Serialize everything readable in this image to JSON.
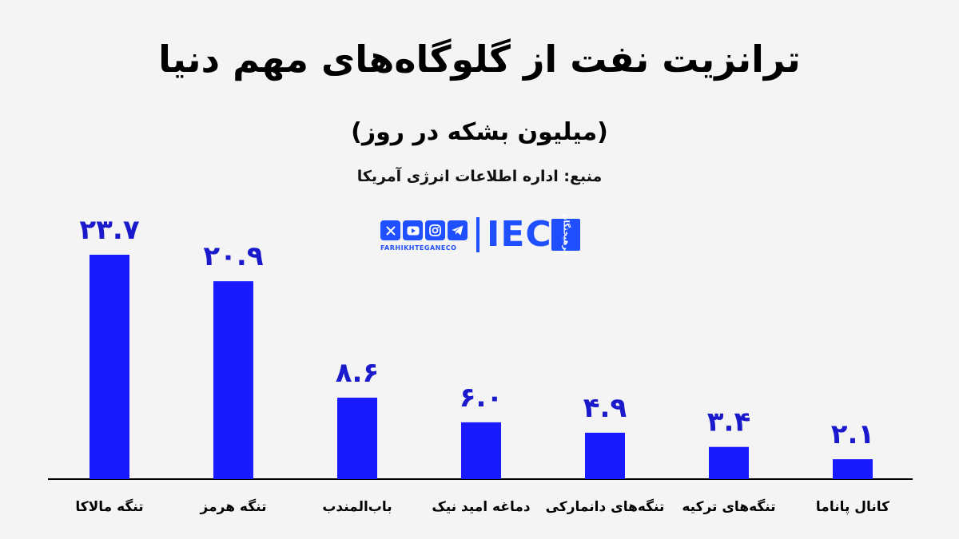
{
  "header": {
    "title": "ترانزیت نفت از گلوگاه‌های مهم دنیا",
    "subtitle": "(میلیون بشکه در روز)",
    "source": "منبع: اداره اطلاعات انرژی آمریکا"
  },
  "branding": {
    "logo_text": "IEC",
    "logo_badge": "فرهیختگان",
    "handle": "FARHIKHTEGANECO",
    "social_icons": [
      "x-icon",
      "youtube-icon",
      "instagram-icon",
      "telegram-icon"
    ],
    "accent_color": "#1f4fff"
  },
  "chart_data": {
    "type": "bar",
    "categories": [
      "تنگه مالاکا",
      "تنگه هرمز",
      "باب‌المندب",
      "دماغه امید نیک",
      "تنگه‌های دانمارکی",
      "تنگه‌های ترکیه",
      "کانال پاناما"
    ],
    "values": [
      23.7,
      20.9,
      8.6,
      6.0,
      4.9,
      3.4,
      2.1
    ],
    "value_labels": [
      "۲۳.۷",
      "۲۰.۹",
      "۸.۶",
      "۶.۰",
      "۴.۹",
      "۳.۴",
      "۲.۱"
    ],
    "title": "ترانزیت نفت از گلوگاه‌های مهم دنیا",
    "ylabel": "",
    "xlabel": "",
    "ylim": [
      0,
      25
    ],
    "grid": false,
    "bar_color": "#1a1aff",
    "label_color": "#1a1acc"
  }
}
